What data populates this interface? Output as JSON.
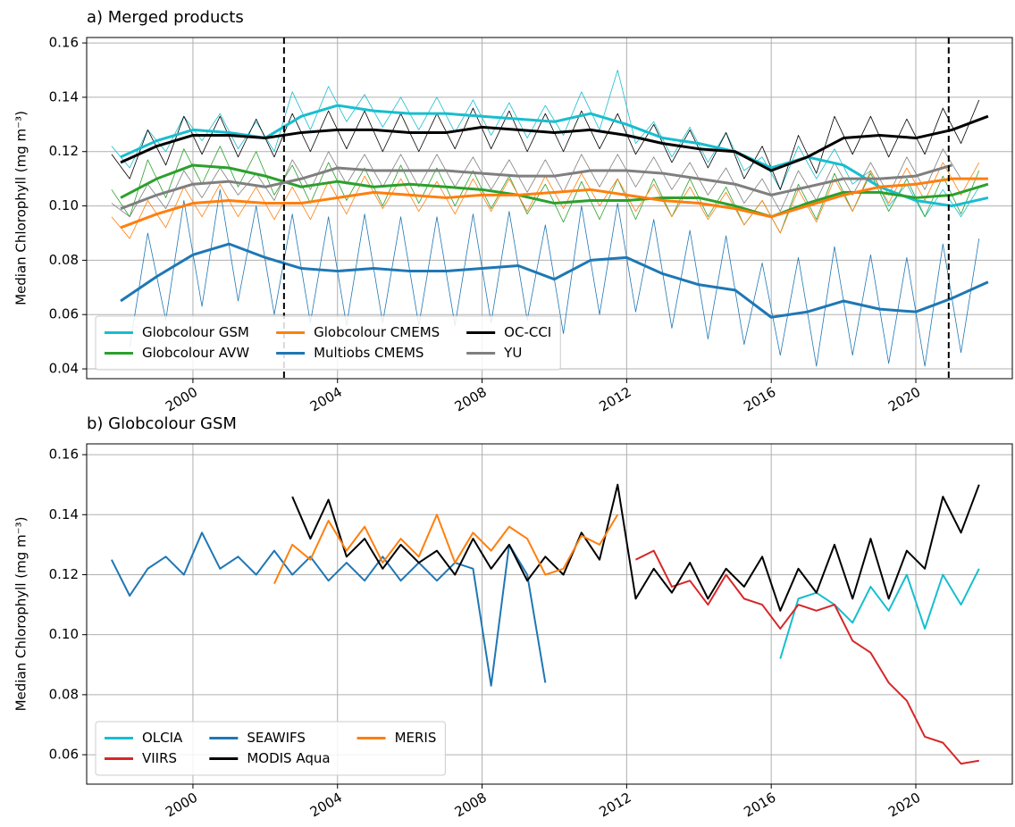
{
  "chart_data": [
    {
      "type": "line",
      "title": "a) Merged products",
      "ylabel": "Median Chlorophyll (mg m⁻³)",
      "xlim": [
        1997.06,
        2022.67
      ],
      "ylim": [
        0.0364,
        0.162
      ],
      "xticks": [
        2000,
        2004,
        2008,
        2012,
        2016,
        2020
      ],
      "yticks": [
        0.04,
        0.06,
        0.08,
        {
          "value": 0.1,
          "label": "0.10"
        },
        0.12,
        0.14,
        0.16
      ],
      "grid": true,
      "legend": "lower left",
      "legend_columns": 3,
      "vlines": [
        2002.52,
        2020.91
      ],
      "x": [
        1997.75,
        1998.25,
        1998.75,
        1999.25,
        1999.75,
        2000.25,
        2000.75,
        2001.25,
        2001.75,
        2002.25,
        2002.75,
        2003.25,
        2003.75,
        2004.25,
        2004.75,
        2005.25,
        2005.75,
        2006.25,
        2006.75,
        2007.25,
        2007.75,
        2008.25,
        2008.75,
        2009.25,
        2009.75,
        2010.25,
        2010.75,
        2011.25,
        2011.75,
        2012.25,
        2012.75,
        2013.25,
        2013.75,
        2014.25,
        2014.75,
        2015.25,
        2015.75,
        2016.25,
        2016.75,
        2017.25,
        2017.75,
        2018.25,
        2018.75,
        2019.25,
        2019.75,
        2020.25,
        2020.75,
        2021.25,
        2021.75
      ],
      "smooth_x": [
        1998,
        1999,
        2000,
        2001,
        2002,
        2003,
        2004,
        2005,
        2006,
        2007,
        2008,
        2009,
        2010,
        2011,
        2012,
        2013,
        2014,
        2015,
        2016,
        2017,
        2018,
        2019,
        2020,
        2021,
        2022
      ],
      "series": [
        {
          "name": "Globcolour GSM",
          "color": "#17becf",
          "values": [
            0.122,
            0.114,
            0.128,
            0.12,
            0.133,
            0.124,
            0.134,
            0.121,
            0.131,
            0.12,
            0.142,
            0.128,
            0.144,
            0.131,
            0.141,
            0.129,
            0.14,
            0.128,
            0.14,
            0.127,
            0.139,
            0.126,
            0.138,
            0.125,
            0.137,
            0.126,
            0.142,
            0.128,
            0.15,
            0.123,
            0.131,
            0.118,
            0.129,
            0.116,
            0.127,
            0.113,
            0.118,
            0.106,
            0.122,
            0.11,
            0.121,
            0.108,
            0.113,
            0.1,
            0.108,
            0.096,
            0.106,
            0.096,
            0.107
          ],
          "smooth": [
            0.118,
            0.124,
            0.128,
            0.127,
            0.125,
            0.133,
            0.137,
            0.135,
            0.134,
            0.134,
            0.133,
            0.132,
            0.131,
            0.134,
            0.13,
            0.125,
            0.123,
            0.12,
            0.114,
            0.118,
            0.115,
            0.107,
            0.102,
            0.1,
            0.103
          ]
        },
        {
          "name": "Globcolour AVW",
          "color": "#2ca02c",
          "values": [
            0.106,
            0.096,
            0.117,
            0.103,
            0.121,
            0.108,
            0.122,
            0.107,
            0.12,
            0.104,
            0.115,
            0.101,
            0.116,
            0.102,
            0.114,
            0.1,
            0.115,
            0.101,
            0.114,
            0.1,
            0.113,
            0.099,
            0.111,
            0.097,
            0.108,
            0.094,
            0.109,
            0.095,
            0.11,
            0.095,
            0.11,
            0.096,
            0.11,
            0.096,
            0.107,
            0.093,
            0.102,
            0.09,
            0.108,
            0.095,
            0.112,
            0.098,
            0.112,
            0.098,
            0.11,
            0.096,
            0.111,
            0.097,
            0.113
          ],
          "smooth": [
            0.103,
            0.11,
            0.115,
            0.114,
            0.111,
            0.107,
            0.109,
            0.107,
            0.108,
            0.107,
            0.106,
            0.104,
            0.101,
            0.102,
            0.102,
            0.103,
            0.103,
            0.1,
            0.096,
            0.101,
            0.105,
            0.105,
            0.103,
            0.104,
            0.108
          ]
        },
        {
          "name": "Globcolour CMEMS",
          "color": "#ff7f0e",
          "values": [
            0.096,
            0.088,
            0.102,
            0.092,
            0.107,
            0.096,
            0.108,
            0.096,
            0.107,
            0.095,
            0.107,
            0.095,
            0.109,
            0.097,
            0.111,
            0.099,
            0.11,
            0.098,
            0.109,
            0.097,
            0.11,
            0.098,
            0.11,
            0.098,
            0.111,
            0.099,
            0.112,
            0.1,
            0.11,
            0.098,
            0.108,
            0.096,
            0.107,
            0.095,
            0.105,
            0.093,
            0.102,
            0.09,
            0.106,
            0.094,
            0.11,
            0.098,
            0.113,
            0.101,
            0.114,
            0.102,
            0.116,
            0.104,
            0.116
          ],
          "smooth": [
            0.092,
            0.097,
            0.101,
            0.102,
            0.101,
            0.101,
            0.103,
            0.105,
            0.104,
            0.103,
            0.104,
            0.104,
            0.105,
            0.106,
            0.104,
            0.102,
            0.101,
            0.099,
            0.096,
            0.1,
            0.104,
            0.107,
            0.108,
            0.11,
            0.11
          ]
        },
        {
          "name": "Multiobs CMEMS",
          "color": "#1f77b4",
          "values": [
            null,
            0.048,
            0.09,
            0.058,
            0.102,
            0.063,
            0.106,
            0.065,
            0.1,
            0.06,
            0.097,
            0.057,
            0.096,
            0.056,
            0.097,
            0.057,
            0.096,
            0.056,
            0.096,
            0.056,
            0.097,
            0.057,
            0.098,
            0.058,
            0.093,
            0.053,
            0.1,
            0.06,
            0.101,
            0.061,
            0.095,
            0.055,
            0.091,
            0.051,
            0.089,
            0.049,
            0.079,
            0.045,
            0.081,
            0.041,
            0.085,
            0.045,
            0.082,
            0.042,
            0.081,
            0.041,
            0.086,
            0.046,
            0.088
          ],
          "smooth": [
            0.065,
            0.074,
            0.082,
            0.086,
            0.081,
            0.077,
            0.076,
            0.077,
            0.076,
            0.076,
            0.077,
            0.078,
            0.073,
            0.08,
            0.081,
            0.075,
            0.071,
            0.069,
            0.059,
            0.061,
            0.065,
            0.062,
            0.061,
            0.066,
            0.072
          ]
        },
        {
          "name": "OC-CCI",
          "color": "#000000",
          "values": [
            0.119,
            0.11,
            0.128,
            0.115,
            0.133,
            0.119,
            0.133,
            0.118,
            0.132,
            0.118,
            0.134,
            0.12,
            0.135,
            0.121,
            0.135,
            0.12,
            0.134,
            0.12,
            0.134,
            0.121,
            0.136,
            0.121,
            0.135,
            0.12,
            0.134,
            0.12,
            0.135,
            0.121,
            0.134,
            0.119,
            0.13,
            0.116,
            0.128,
            0.114,
            0.127,
            0.11,
            0.122,
            0.106,
            0.126,
            0.112,
            0.133,
            0.119,
            0.133,
            0.118,
            0.132,
            0.119,
            0.136,
            0.123,
            0.139
          ],
          "smooth": [
            0.116,
            0.122,
            0.126,
            0.126,
            0.125,
            0.127,
            0.128,
            0.128,
            0.127,
            0.127,
            0.129,
            0.128,
            0.127,
            0.128,
            0.126,
            0.123,
            0.121,
            0.12,
            0.113,
            0.118,
            0.125,
            0.126,
            0.125,
            0.128,
            0.133
          ]
        },
        {
          "name": "YU",
          "color": "#7f7f7f",
          "values": [
            0.101,
            0.096,
            0.108,
            0.099,
            0.113,
            0.103,
            0.114,
            0.104,
            0.112,
            0.102,
            0.117,
            0.106,
            0.12,
            0.108,
            0.119,
            0.107,
            0.119,
            0.107,
            0.119,
            0.107,
            0.118,
            0.106,
            0.117,
            0.105,
            0.117,
            0.105,
            0.119,
            0.107,
            0.119,
            0.107,
            0.118,
            0.106,
            0.116,
            0.104,
            0.114,
            0.101,
            0.11,
            0.098,
            0.113,
            0.102,
            0.116,
            0.104,
            0.116,
            0.104,
            0.118,
            0.106,
            0.121,
            0.11,
            null
          ],
          "smooth": [
            0.099,
            0.104,
            0.108,
            0.109,
            0.107,
            0.11,
            0.114,
            0.113,
            0.113,
            0.113,
            0.112,
            0.111,
            0.111,
            0.113,
            0.113,
            0.112,
            0.11,
            0.108,
            0.104,
            0.107,
            0.11,
            0.11,
            0.111,
            0.115,
            null
          ]
        }
      ]
    },
    {
      "type": "line",
      "title": "b) Globcolour GSM",
      "ylabel": "Median Chlorophyll (mg m⁻³)",
      "xlim": [
        1997.06,
        2022.67
      ],
      "ylim": [
        0.0502,
        0.1636
      ],
      "xticks": [
        2000,
        2004,
        2008,
        2012,
        2016,
        2020
      ],
      "yticks": [
        0.06,
        0.08,
        {
          "value": 0.1,
          "label": "0.10"
        },
        0.12,
        0.14,
        0.16
      ],
      "grid": true,
      "legend": "lower left",
      "legend_columns": 3,
      "x": [
        1997.75,
        1998.25,
        1998.75,
        1999.25,
        1999.75,
        2000.25,
        2000.75,
        2001.25,
        2001.75,
        2002.25,
        2002.75,
        2003.25,
        2003.75,
        2004.25,
        2004.75,
        2005.25,
        2005.75,
        2006.25,
        2006.75,
        2007.25,
        2007.75,
        2008.25,
        2008.75,
        2009.25,
        2009.75,
        2010.25,
        2010.75,
        2011.25,
        2011.75,
        2012.25,
        2012.75,
        2013.25,
        2013.75,
        2014.25,
        2014.75,
        2015.25,
        2015.75,
        2016.25,
        2016.75,
        2017.25,
        2017.75,
        2018.25,
        2018.75,
        2019.25,
        2019.75,
        2020.25,
        2020.75,
        2021.25,
        2021.75
      ],
      "series": [
        {
          "name": "OLCIA",
          "color": "#17becf",
          "values": [
            null,
            null,
            null,
            null,
            null,
            null,
            null,
            null,
            null,
            null,
            null,
            null,
            null,
            null,
            null,
            null,
            null,
            null,
            null,
            null,
            null,
            null,
            null,
            null,
            null,
            null,
            null,
            null,
            null,
            null,
            null,
            null,
            null,
            null,
            null,
            null,
            null,
            0.092,
            0.112,
            0.114,
            0.11,
            0.104,
            0.116,
            0.108,
            0.12,
            0.102,
            0.12,
            0.11,
            0.122
          ]
        },
        {
          "name": "VIIRS",
          "color": "#d62728",
          "values": [
            null,
            null,
            null,
            null,
            null,
            null,
            null,
            null,
            null,
            null,
            null,
            null,
            null,
            null,
            null,
            null,
            null,
            null,
            null,
            null,
            null,
            null,
            null,
            null,
            null,
            null,
            null,
            null,
            null,
            0.125,
            0.128,
            0.116,
            0.118,
            0.11,
            0.12,
            0.112,
            0.11,
            0.102,
            0.11,
            0.108,
            0.11,
            0.098,
            0.094,
            0.084,
            0.078,
            0.066,
            0.064,
            0.057,
            0.058
          ]
        },
        {
          "name": "SEAWIFS",
          "color": "#1f77b4",
          "values": [
            0.125,
            0.113,
            0.122,
            0.126,
            0.12,
            0.134,
            0.122,
            0.126,
            0.12,
            0.128,
            0.12,
            0.126,
            0.118,
            0.124,
            0.118,
            0.126,
            0.118,
            0.124,
            0.118,
            0.124,
            0.122,
            0.083,
            0.13,
            0.12,
            0.084,
            null,
            null,
            null,
            null,
            null,
            null,
            null,
            null,
            null,
            null,
            null,
            null,
            null,
            null,
            null,
            null,
            null,
            null,
            null,
            null,
            null,
            null,
            null,
            null
          ]
        },
        {
          "name": "MODIS Aqua",
          "color": "#000000",
          "values": [
            null,
            null,
            null,
            null,
            null,
            null,
            null,
            null,
            null,
            null,
            0.146,
            0.132,
            0.145,
            0.126,
            0.132,
            0.122,
            0.13,
            0.124,
            0.128,
            0.12,
            0.132,
            0.122,
            0.13,
            0.118,
            0.126,
            0.12,
            0.134,
            0.125,
            0.15,
            0.112,
            0.122,
            0.114,
            0.124,
            0.112,
            0.122,
            0.116,
            0.126,
            0.108,
            0.122,
            0.114,
            0.13,
            0.112,
            0.132,
            0.112,
            0.128,
            0.122,
            0.146,
            0.134,
            0.15
          ]
        },
        {
          "name": "MERIS",
          "color": "#ff7f0e",
          "values": [
            null,
            null,
            null,
            null,
            null,
            null,
            null,
            null,
            null,
            0.117,
            0.13,
            0.125,
            0.138,
            0.128,
            0.136,
            0.124,
            0.132,
            0.126,
            0.14,
            0.124,
            0.134,
            0.128,
            0.136,
            0.132,
            0.12,
            0.122,
            0.133,
            0.13,
            0.14,
            null,
            null,
            null,
            null,
            null,
            null,
            null,
            null,
            null,
            null,
            null,
            null,
            null,
            null,
            null,
            null,
            null,
            null,
            null,
            null
          ]
        }
      ]
    }
  ]
}
